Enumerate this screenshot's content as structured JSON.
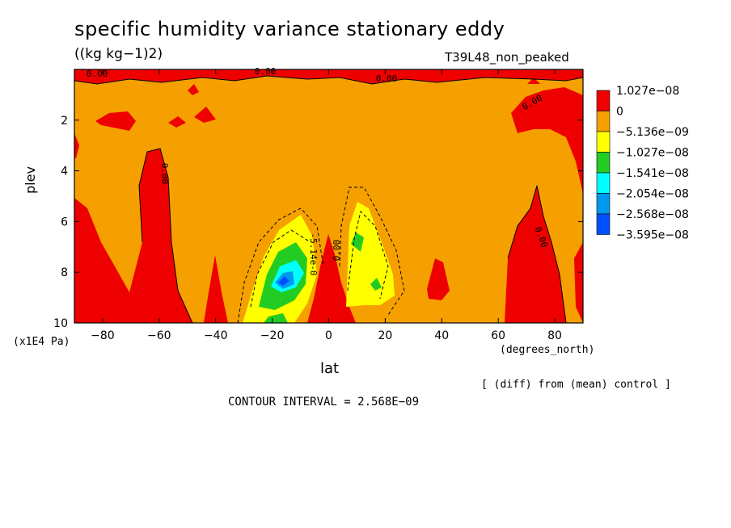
{
  "chart_data": {
    "type": "heatmap",
    "title": "specific humidity variance stationary eddy",
    "units": "((kg kg−1)2)",
    "run_label": "T39L48_non_peaked",
    "xlabel": "lat",
    "ylabel": "plev",
    "x_unit_note": "(degrees_north)",
    "y_unit_note": "(x1E4 Pa)",
    "xlim": [
      -90,
      90
    ],
    "ylim": [
      10,
      0
    ],
    "x_ticks": [
      "−80",
      "−60",
      "−40",
      "−20",
      "0",
      "20",
      "40",
      "60",
      "80"
    ],
    "y_ticks": [
      "2",
      "4",
      "6",
      "8",
      "10"
    ],
    "legend": {
      "placement": "right",
      "levels": [
        {
          "label": "1.027e−08",
          "color": "#ef0000"
        },
        {
          "label": "0",
          "color": "#f5a000"
        },
        {
          "label": "−5.136e−09",
          "color": "#ffff00"
        },
        {
          "label": "−1.027e−08",
          "color": "#22cc22"
        },
        {
          "label": "−1.541e−08",
          "color": "#00ffff"
        },
        {
          "label": "−2.054e−08",
          "color": "#0099ee"
        },
        {
          "label": "−2.568e−08",
          "color": "#0050ff"
        },
        {
          "label": "−3.595e−08",
          "color": null
        }
      ]
    },
    "contour_labels": [
      "0.00",
      "0.00",
      "0.00",
      "0.00",
      "0.00",
      "0.00",
      "0.00",
      "-5.14e-0"
    ],
    "diff_note": "[ (diff) from (mean) control ]",
    "contour_interval": "CONTOUR INTERVAL = 2.568E−09"
  },
  "colors": {
    "background_fill": "#f5a000",
    "positive": "#ef0000",
    "neg1": "#ffff00",
    "neg2": "#22cc22",
    "neg3": "#00ffff",
    "neg4": "#0099ee",
    "neg5": "#0050ff"
  }
}
